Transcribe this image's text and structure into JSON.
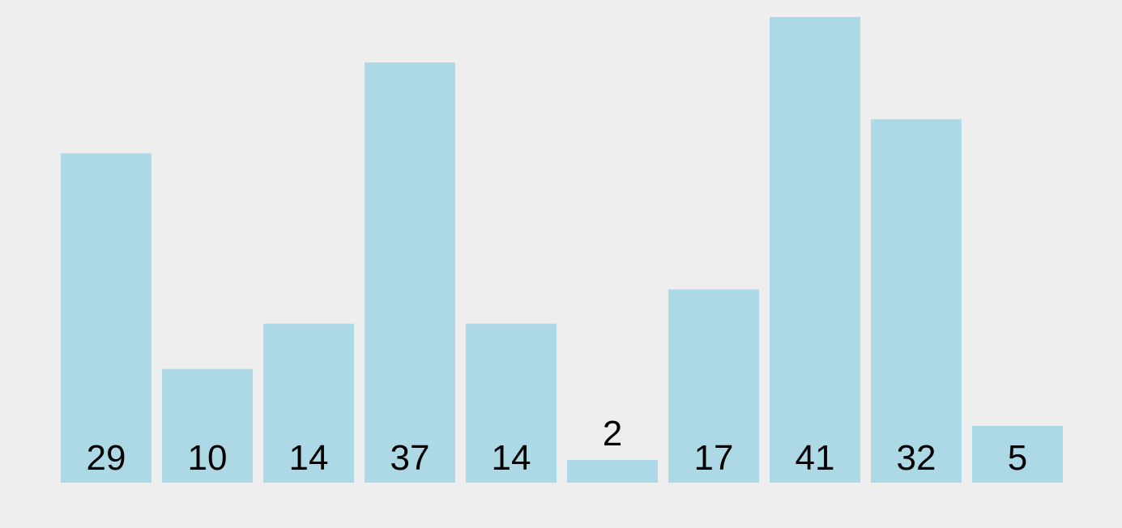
{
  "chart_data": {
    "type": "bar",
    "categories": [
      "",
      "",
      "",
      "",
      "",
      "",
      "",
      "",
      "",
      ""
    ],
    "values": [
      29,
      10,
      14,
      37,
      14,
      2,
      17,
      41,
      32,
      5
    ],
    "labels": [
      "29",
      "10",
      "14",
      "37",
      "14",
      "2",
      "17",
      "41",
      "32",
      "5"
    ],
    "title": "",
    "xlabel": "",
    "ylabel": "",
    "ylim": [
      0,
      41
    ],
    "grid": false,
    "legend": "none",
    "bar_color": "#add8e6",
    "background_color": "#eeeeee",
    "label_color": "#000000"
  }
}
